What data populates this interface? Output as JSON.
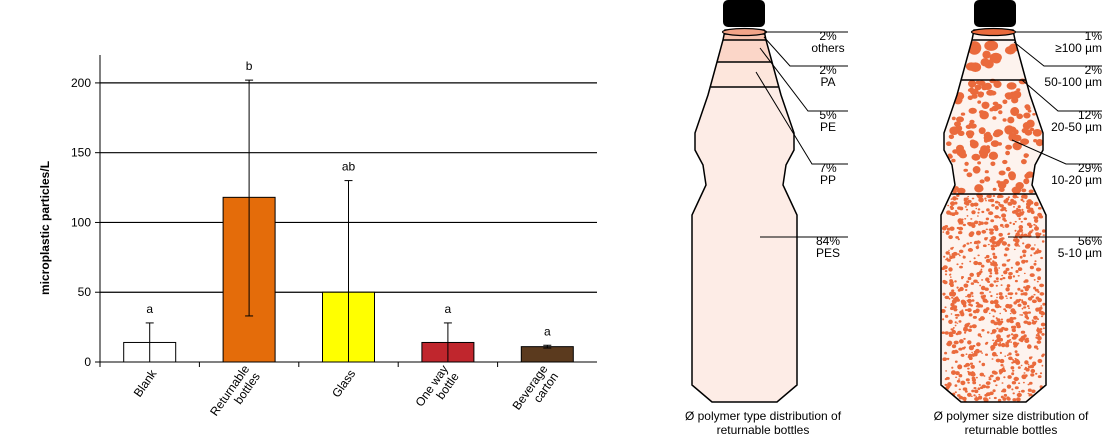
{
  "chart_data": [
    {
      "type": "bar",
      "ylabel": "microplastic particles/L",
      "ylim": [
        0,
        220
      ],
      "yticks": [
        0,
        50,
        100,
        150,
        200
      ],
      "grid": true,
      "categories": [
        "Blank",
        "Returnable bottles",
        "Glass",
        "One way bottle",
        "Beverage carton"
      ],
      "category_lines": [
        [
          "Blank"
        ],
        [
          "Returnable",
          "bottles"
        ],
        [
          "Glass"
        ],
        [
          "One way",
          "bottle"
        ],
        [
          "Beverage",
          "carton"
        ]
      ],
      "values": [
        14,
        118,
        50,
        14,
        11
      ],
      "error_upper": [
        28,
        202,
        130,
        28,
        12
      ],
      "error_lower": [
        0,
        33,
        0,
        0,
        10
      ],
      "significance": [
        "a",
        "b",
        "ab",
        "a",
        "a"
      ],
      "colors": [
        "#ffffff",
        "#e46c0a",
        "#ffff00",
        "#c0262d",
        "#5b3a1e"
      ]
    },
    {
      "type": "pie",
      "caption_lines": [
        "Ø polymer type distribution of",
        "returnable bottles"
      ],
      "slices": [
        {
          "pct": "2%",
          "label": "others",
          "value": 2,
          "color": "#f2a488"
        },
        {
          "pct": "2%",
          "label": "PA",
          "value": 2,
          "color": "#f8c4b0"
        },
        {
          "pct": "5%",
          "label": "PE",
          "value": 5,
          "color": "#fbd6c8"
        },
        {
          "pct": "7%",
          "label": "PP",
          "value": 7,
          "color": "#fde6dc"
        },
        {
          "pct": "84%",
          "label": "PES",
          "value": 84,
          "color": "#fdece6"
        }
      ]
    },
    {
      "type": "pie",
      "caption_lines": [
        "Ø polymer size distribution of",
        "returnable bottles"
      ],
      "dot_color": "#ea6a3c",
      "slices": [
        {
          "pct": "1%",
          "label": "≥100 µm",
          "value": 1
        },
        {
          "pct": "2%",
          "label": "50-100 µm",
          "value": 2
        },
        {
          "pct": "12%",
          "label": "20-50 µm",
          "value": 12
        },
        {
          "pct": "29%",
          "label": "10-20 µm",
          "value": 29
        },
        {
          "pct": "56%",
          "label": "5-10 µm",
          "value": 56
        }
      ]
    }
  ]
}
